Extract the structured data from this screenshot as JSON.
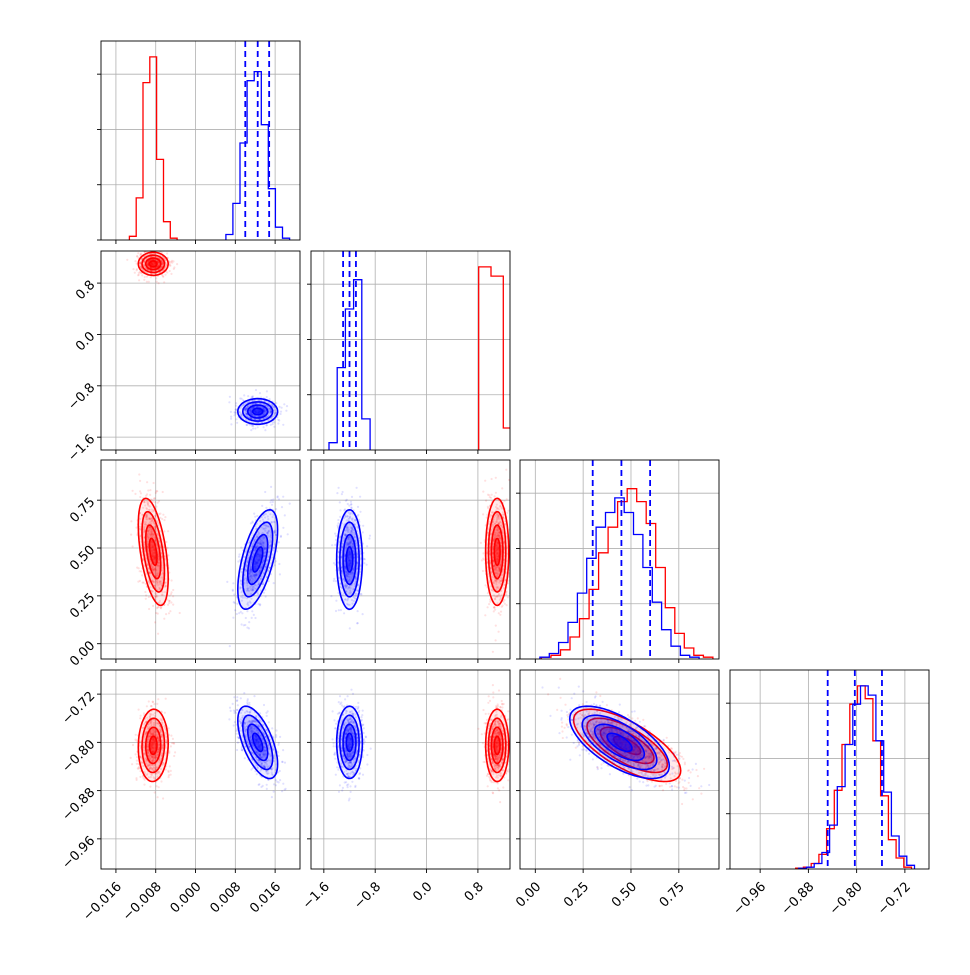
{
  "figure": {
    "type": "corner-plot"
  },
  "colors": {
    "series_a": "#ff0000",
    "series_b": "#0000ff",
    "grid": "#b0b0b0",
    "axes": "#000000"
  },
  "chart_data": {
    "type": "corner",
    "n_params": 4,
    "params": [
      {
        "index": 0,
        "range": [
          -0.019,
          0.021
        ],
        "ticks": [
          -0.016,
          -0.008,
          0.0,
          0.008,
          0.016
        ],
        "tick_labels": [
          "−0.016",
          "−0.008",
          "0.000",
          "0.008",
          "0.016"
        ]
      },
      {
        "index": 1,
        "range": [
          -1.8,
          1.3
        ],
        "ticks": [
          -1.6,
          -0.8,
          0.0,
          0.8
        ],
        "tick_labels": [
          "−1.6",
          "−0.8",
          "0.0",
          "0.8"
        ]
      },
      {
        "index": 2,
        "range": [
          -0.08,
          0.96
        ],
        "ticks": [
          0.0,
          0.25,
          0.5,
          0.75
        ],
        "tick_labels": [
          "0.00",
          "0.25",
          "0.50",
          "0.75"
        ]
      },
      {
        "index": 3,
        "range": [
          -1.01,
          -0.68
        ],
        "ticks": [
          -0.96,
          -0.88,
          -0.8,
          -0.72
        ],
        "tick_labels": [
          "−0.96",
          "−0.88",
          "−0.80",
          "−0.72"
        ]
      }
    ],
    "series": [
      {
        "color": "#ff0000",
        "means": [
          -0.0085,
          1.1,
          0.48,
          -0.805
        ],
        "sds": [
          0.0015,
          0.09,
          0.14,
          0.03
        ],
        "correlations": {
          "0-2": -0.5,
          "0-3": 0.05,
          "1-2": 0.0,
          "1-3": 0.0,
          "2-3": -0.7
        },
        "hist_heights": {
          "0": [
            0.02,
            0.23,
            0.86,
            1.0,
            0.44,
            0.1,
            0.01
          ],
          "1": [
            1.0,
            0.95,
            0.12
          ],
          "2": [
            0.01,
            0.02,
            0.05,
            0.12,
            0.22,
            0.38,
            0.58,
            0.72,
            0.86,
            0.93,
            0.86,
            0.74,
            0.5,
            0.28,
            0.14,
            0.06,
            0.02,
            0.01
          ],
          "3": [
            0.005,
            0.01,
            0.03,
            0.08,
            0.22,
            0.43,
            0.68,
            0.9,
            1.0,
            0.93,
            0.7,
            0.4,
            0.16,
            0.06,
            0.01
          ]
        }
      },
      {
        "color": "#0000ff",
        "means": [
          0.0125,
          -1.2,
          0.44,
          -0.8
        ],
        "sds": [
          0.002,
          0.1,
          0.13,
          0.03
        ],
        "correlations": {
          "0-2": 0.6,
          "0-3": -0.6,
          "1-2": 0.0,
          "1-3": 0.0,
          "2-3": -0.65
        },
        "quantiles": {
          "0": [
            0.01,
            0.0125,
            0.0148
          ],
          "1": [
            -1.3,
            -1.2,
            -1.1
          ],
          "2": [
            0.3,
            0.45,
            0.6
          ],
          "3": [
            -0.848,
            -0.803,
            -0.758
          ]
        },
        "hist_heights": {
          "0": [
            0.03,
            0.2,
            0.53,
            0.87,
            0.92,
            0.63,
            0.28,
            0.07,
            0.01
          ],
          "1": [
            0.04,
            0.45,
            0.77,
            0.93,
            0.17
          ],
          "2": [
            0.01,
            0.03,
            0.09,
            0.2,
            0.36,
            0.55,
            0.72,
            0.8,
            0.88,
            0.8,
            0.68,
            0.5,
            0.31,
            0.16,
            0.07,
            0.02,
            0.01
          ],
          "3": [
            0.004,
            0.01,
            0.03,
            0.09,
            0.24,
            0.45,
            0.68,
            0.9,
            1.0,
            0.95,
            0.7,
            0.42,
            0.18,
            0.07,
            0.02
          ]
        }
      }
    ],
    "grid": true,
    "legend": "none"
  }
}
